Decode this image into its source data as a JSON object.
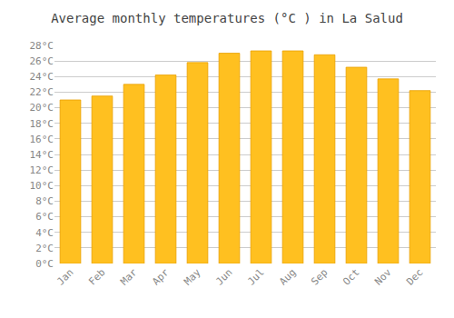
{
  "chart_data": {
    "type": "bar",
    "title": "Average monthly temperatures (°C ) in La Salud",
    "categories": [
      "Jan",
      "Feb",
      "Mar",
      "Apr",
      "May",
      "Jun",
      "Jul",
      "Aug",
      "Sep",
      "Oct",
      "Nov",
      "Dec"
    ],
    "values": [
      21.0,
      21.5,
      23.0,
      24.2,
      25.8,
      27.0,
      27.3,
      27.3,
      26.8,
      25.2,
      23.7,
      22.2
    ],
    "color": "#FFC020",
    "ylim": [
      0,
      28
    ],
    "yticks": [
      {
        "value": 0,
        "label": "0°C"
      },
      {
        "value": 2,
        "label": "2°C"
      },
      {
        "value": 4,
        "label": "4°C"
      },
      {
        "value": 6,
        "label": "6°C"
      },
      {
        "value": 8,
        "label": "8°C"
      },
      {
        "value": 10,
        "label": "10°C"
      },
      {
        "value": 12,
        "label": "12°C"
      },
      {
        "value": 14,
        "label": "14°C"
      },
      {
        "value": 16,
        "label": "16°C"
      },
      {
        "value": 18,
        "label": "18°C"
      },
      {
        "value": 20,
        "label": "20°C"
      },
      {
        "value": 22,
        "label": "22°C"
      },
      {
        "value": 24,
        "label": "24°C"
      },
      {
        "value": 26,
        "label": "26°C"
      },
      {
        "value": 28,
        "label": "28°C"
      }
    ],
    "grid": true
  }
}
